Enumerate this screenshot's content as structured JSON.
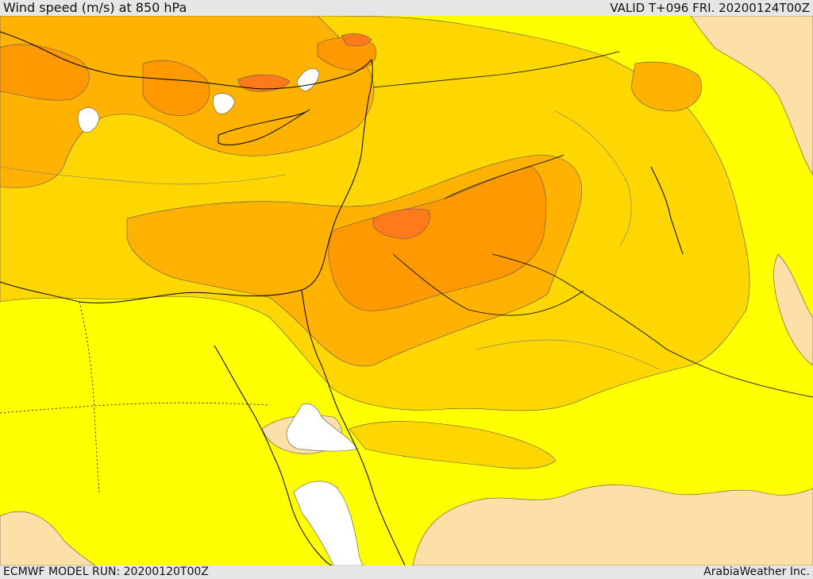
{
  "header": {
    "title": "Wind speed (m/s) at 850 hPa",
    "valid": "VALID T+096 FRI. 20200124T00Z"
  },
  "footer": {
    "model_run": "ECMWF MODEL RUN: 20200120T00Z",
    "credit": "ArabiaWeather Inc."
  },
  "colors": {
    "calm": "#ffffff",
    "light": "#fde0a8",
    "yellow": "#ffff00",
    "gold": "#ffd700",
    "orange_light": "#ffb300",
    "orange": "#ff9900",
    "orange_dark": "#ff7a1a",
    "contour": "#555555",
    "border": "#000000"
  }
}
